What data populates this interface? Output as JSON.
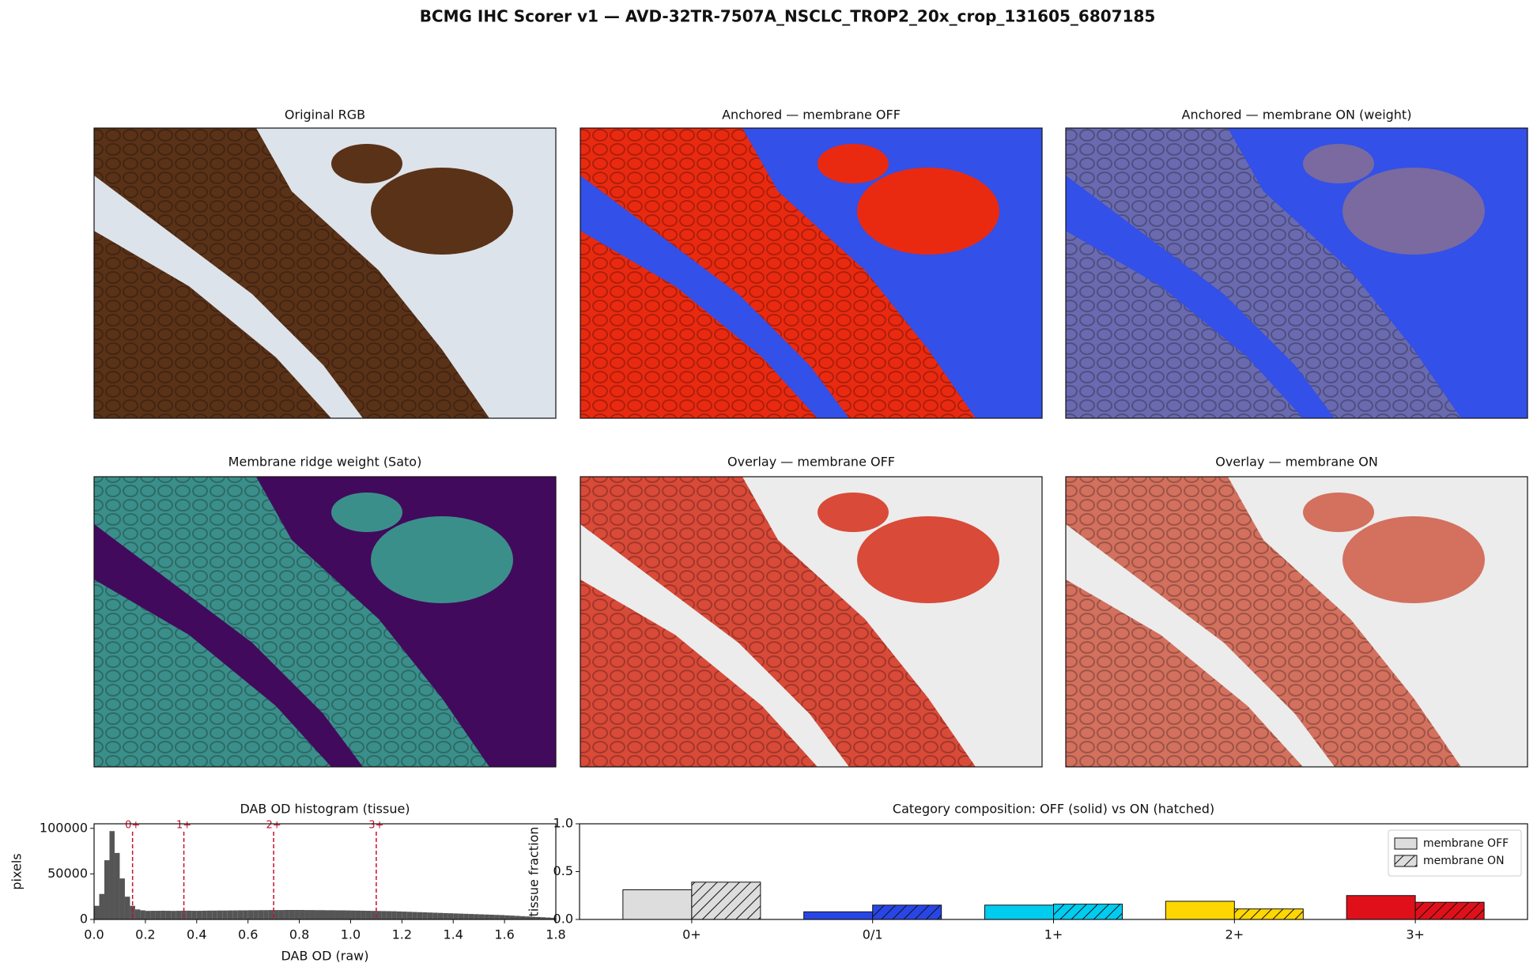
{
  "title": "BCMG IHC Scorer v1 — AVD-32TR-7507A_NSCLC_TROP2_20x_crop_131605_6807185",
  "panels": [
    {
      "title": "Original RGB"
    },
    {
      "title": "Anchored — membrane OFF"
    },
    {
      "title": "Anchored — membrane ON (weight)"
    },
    {
      "title": "Membrane ridge weight (Sato)"
    },
    {
      "title": "Overlay — membrane OFF"
    },
    {
      "title": "Overlay — membrane ON"
    }
  ],
  "chart_data": [
    {
      "type": "histogram",
      "title": "DAB OD histogram (tissue)",
      "xlabel": "DAB OD (raw)",
      "ylabel": "pixels",
      "color": "#555555",
      "bins": [
        0,
        0.02,
        0.04,
        0.06,
        0.08,
        0.1,
        0.12,
        0.14,
        0.16,
        0.18,
        0.2,
        0.22,
        0.24,
        0.26,
        0.28,
        0.3,
        0.32,
        0.34,
        0.36,
        0.38,
        0.4,
        0.42,
        0.44,
        0.46,
        0.48,
        0.5,
        0.52,
        0.54,
        0.56,
        0.58,
        0.6,
        0.62,
        0.64,
        0.66,
        0.68,
        0.7,
        0.72,
        0.74,
        0.76,
        0.78,
        0.8,
        0.82,
        0.84,
        0.86,
        0.88,
        0.9,
        0.92,
        0.94,
        0.96,
        0.98,
        1,
        1.02,
        1.04,
        1.06,
        1.08,
        1.1,
        1.12,
        1.14,
        1.16,
        1.18,
        1.2,
        1.22,
        1.24,
        1.26,
        1.28,
        1.3,
        1.32,
        1.34,
        1.36,
        1.38,
        1.4,
        1.42,
        1.44,
        1.46,
        1.48,
        1.5,
        1.52,
        1.54,
        1.56,
        1.58,
        1.6,
        1.62,
        1.64,
        1.66,
        1.68,
        1.7,
        1.72,
        1.74,
        1.76,
        1.78,
        1.8
      ],
      "values": [
        15000,
        28000,
        65000,
        97000,
        73000,
        45000,
        25000,
        15000,
        11000,
        10000,
        9400,
        9500,
        9500,
        9600,
        9500,
        9400,
        9500,
        9600,
        9600,
        9500,
        9500,
        9600,
        9700,
        9700,
        9800,
        9800,
        9900,
        9900,
        10000,
        10000,
        10100,
        10100,
        10200,
        10200,
        10300,
        10300,
        10300,
        10400,
        10400,
        10400,
        10400,
        10300,
        10300,
        10200,
        10200,
        10100,
        10100,
        10000,
        10000,
        9900,
        9800,
        9700,
        9600,
        9500,
        9400,
        9300,
        9200,
        9100,
        9000,
        8800,
        8600,
        8400,
        8200,
        8000,
        7800,
        7600,
        7400,
        7200,
        7000,
        6800,
        6600,
        6400,
        6200,
        6000,
        5800,
        5600,
        5400,
        5200,
        5000,
        4800,
        4500,
        4200,
        3900,
        3600,
        3300,
        3000,
        2700,
        2400,
        2100,
        1800
      ],
      "xlim": [
        0,
        1.8
      ],
      "xticks": [
        {
          "value": 0,
          "label": "0.0"
        },
        0.2,
        0.4,
        0.6,
        0.8,
        {
          "value": 1,
          "label": "1.0"
        },
        1.2,
        1.4,
        1.6,
        1.8
      ],
      "ylim": [
        0,
        105000
      ],
      "yticks": [
        0,
        50000,
        100000
      ],
      "thresholds": [
        {
          "value": 0.15,
          "label": "0+"
        },
        {
          "value": 0.35,
          "label": "1+"
        },
        {
          "value": 0.7,
          "label": "2+"
        },
        {
          "value": 1.1,
          "label": "3+"
        }
      ],
      "threshold_color": "#c8102e"
    },
    {
      "type": "grouped_bar",
      "title": "Category composition: OFF (solid)  vs  ON (hatched)",
      "ylabel": "tissue fraction",
      "categories": [
        "0+",
        "0/1",
        "1+",
        "2+",
        "3+"
      ],
      "category_colors": [
        "#dddddd",
        "#2846e6",
        "#00ccf0",
        "#ffd700",
        "#e0101a"
      ],
      "series": [
        {
          "name": "membrane OFF",
          "color": "#dddddd",
          "hatch": false,
          "values": [
            0.31,
            0.08,
            0.15,
            0.19,
            0.25
          ]
        },
        {
          "name": "membrane ON",
          "color": "#dddddd",
          "hatch": true,
          "values": [
            0.39,
            0.15,
            0.16,
            0.11,
            0.18
          ]
        }
      ],
      "ylim": [
        0,
        1
      ],
      "yticks": [
        {
          "value": 0,
          "label": "0.0"
        },
        0.5,
        {
          "value": 1,
          "label": "1.0"
        }
      ],
      "legend": "upper right"
    }
  ]
}
